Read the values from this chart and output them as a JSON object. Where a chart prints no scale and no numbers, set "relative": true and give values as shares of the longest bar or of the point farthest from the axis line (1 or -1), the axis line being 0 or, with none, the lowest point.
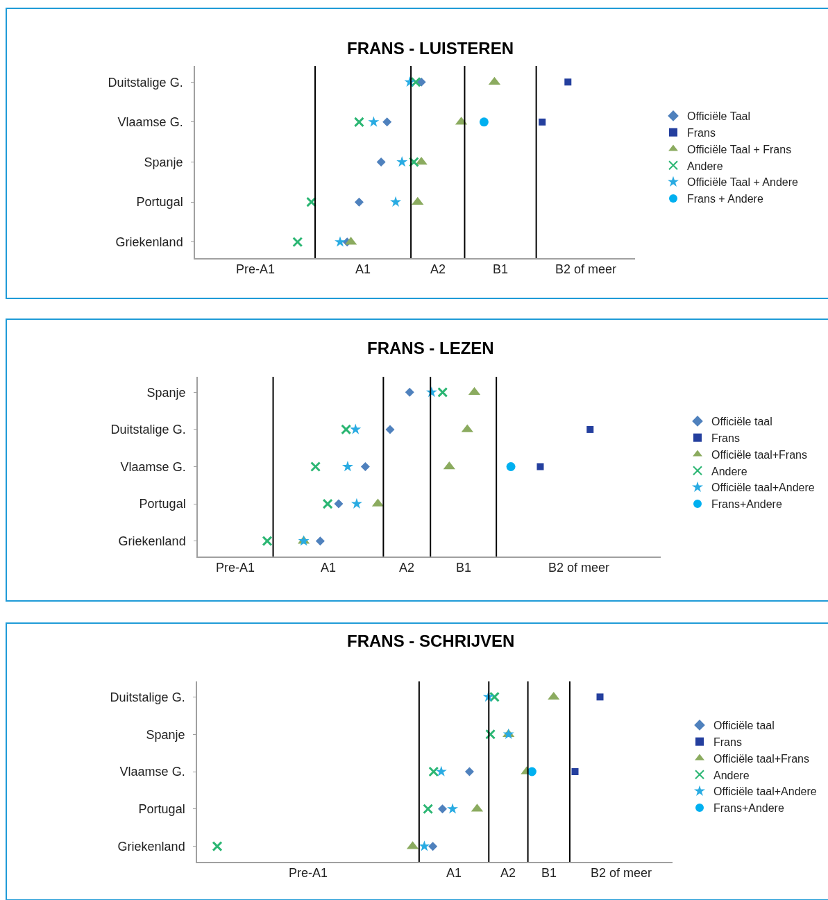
{
  "chart_data": [
    {
      "type": "scatter",
      "title": "FRANS - LUISTEREN",
      "orientation": "horizontal",
      "relative": true,
      "legend": "right",
      "categories": [
        "Duitstalige G.",
        "Vlaamse G.",
        "Spanje",
        "Portugal",
        "Griekenland"
      ],
      "series": [
        {
          "name": "Officiële Taal",
          "color": "#4f81bd",
          "marker": "diamond",
          "values": [
            0.607,
            0.515,
            0.499,
            0.44,
            0.408
          ]
        },
        {
          "name": "Frans",
          "color": "#243f9e",
          "marker": "square",
          "values": [
            1,
            0.931,
            null,
            null,
            null
          ]
        },
        {
          "name": "Officiële Taal + Frans",
          "color": "#8bab5f",
          "marker": "triangle",
          "values": [
            0.803,
            0.714,
            0.607,
            0.597,
            0.418
          ]
        },
        {
          "name": "Andere",
          "color": "#2bb673",
          "marker": "cross",
          "values": [
            0.592,
            0.44,
            0.587,
            0.312,
            0.275
          ]
        },
        {
          "name": "Officiële Taal + Andere",
          "color": "#29abe2",
          "marker": "star",
          "values": [
            0.576,
            0.479,
            0.555,
            0.538,
            0.389
          ]
        },
        {
          "name": "Frans + Andere",
          "color": "#00b0f0",
          "marker": "circle",
          "values": [
            null,
            0.775,
            null,
            null,
            null
          ]
        }
      ],
      "ref_lines": [
        {
          "axis": "x",
          "value": 0.322,
          "color": "#000000"
        },
        {
          "axis": "x",
          "value": 0.579,
          "color": "#000000"
        },
        {
          "axis": "x",
          "value": 0.723,
          "color": "#000000"
        },
        {
          "axis": "x",
          "value": 0.915,
          "color": "#000000"
        }
      ],
      "annotations": [
        "Pre-A1",
        "A1",
        "A2",
        "B1",
        "B2 of meer"
      ]
    },
    {
      "type": "scatter",
      "title": "FRANS - LEZEN",
      "orientation": "horizontal",
      "relative": true,
      "legend": "right",
      "categories": [
        "Spanje",
        "Duitstalige G.",
        "Vlaamse G.",
        "Portugal",
        "Griekenland"
      ],
      "series": [
        {
          "name": "Officiële taal",
          "color": "#4f81bd",
          "marker": "diamond",
          "values": [
            0.54,
            0.49,
            0.427,
            0.359,
            0.312
          ]
        },
        {
          "name": "Frans",
          "color": "#243f9e",
          "marker": "square",
          "values": [
            null,
            1,
            0.873,
            null,
            null
          ]
        },
        {
          "name": "Officiële taal+Frans",
          "color": "#8bab5f",
          "marker": "triangle",
          "values": [
            0.705,
            0.687,
            0.641,
            0.459,
            0.27
          ]
        },
        {
          "name": "Andere",
          "color": "#2bb673",
          "marker": "cross",
          "values": [
            0.624,
            0.378,
            0.3,
            0.331,
            0.177
          ]
        },
        {
          "name": "Officiële taal+Andere",
          "color": "#29abe2",
          "marker": "star",
          "values": [
            0.596,
            0.402,
            0.382,
            0.405,
            0.27
          ]
        },
        {
          "name": "Frans+Andere",
          "color": "#00b0f0",
          "marker": "circle",
          "values": [
            null,
            null,
            0.798,
            null,
            null
          ]
        }
      ],
      "ref_lines": [
        {
          "axis": "x",
          "value": 0.192,
          "color": "#000000"
        },
        {
          "axis": "x",
          "value": 0.473,
          "color": "#000000"
        },
        {
          "axis": "x",
          "value": 0.593,
          "color": "#000000"
        },
        {
          "axis": "x",
          "value": 0.761,
          "color": "#000000"
        }
      ],
      "annotations": [
        "Pre-A1",
        "A1",
        "A2",
        "B1",
        "B2 of meer"
      ]
    },
    {
      "type": "scatter",
      "title": "FRANS - SCHRIJVEN",
      "orientation": "horizontal",
      "relative": true,
      "legend": "right",
      "categories": [
        "Duitstalige G.",
        "Spanje",
        "Vlaamse G.",
        "Portugal",
        "Griekenland"
      ],
      "series": [
        {
          "name": "Officiële taal",
          "color": "#4f81bd",
          "marker": "diamond",
          "values": [
            null,
            null,
            0.676,
            0.609,
            0.585
          ]
        },
        {
          "name": "Frans",
          "color": "#243f9e",
          "marker": "square",
          "values": [
            1,
            null,
            0.938,
            null,
            null
          ]
        },
        {
          "name": "Officiële taal+Frans",
          "color": "#8bab5f",
          "marker": "triangle",
          "values": [
            0.885,
            0.773,
            0.818,
            0.695,
            0.535
          ]
        },
        {
          "name": "Andere",
          "color": "#2bb673",
          "marker": "cross",
          "values": [
            0.738,
            0.728,
            0.587,
            0.573,
            0.05
          ]
        },
        {
          "name": "Officiële taal+Andere",
          "color": "#29abe2",
          "marker": "star",
          "values": [
            0.723,
            0.773,
            0.606,
            0.634,
            0.564
          ]
        },
        {
          "name": "Frans+Andere",
          "color": "#00b0f0",
          "marker": "circle",
          "values": [
            null,
            null,
            0.831,
            null,
            null
          ]
        }
      ],
      "ref_lines": [
        {
          "axis": "x",
          "value": 0.551,
          "color": "#000000"
        },
        {
          "axis": "x",
          "value": 0.724,
          "color": "#000000"
        },
        {
          "axis": "x",
          "value": 0.821,
          "color": "#000000"
        },
        {
          "axis": "x",
          "value": 0.925,
          "color": "#000000"
        }
      ],
      "annotations": [
        "Pre-A1",
        "A1",
        "A2",
        "B1",
        "B2 of meer"
      ]
    }
  ]
}
